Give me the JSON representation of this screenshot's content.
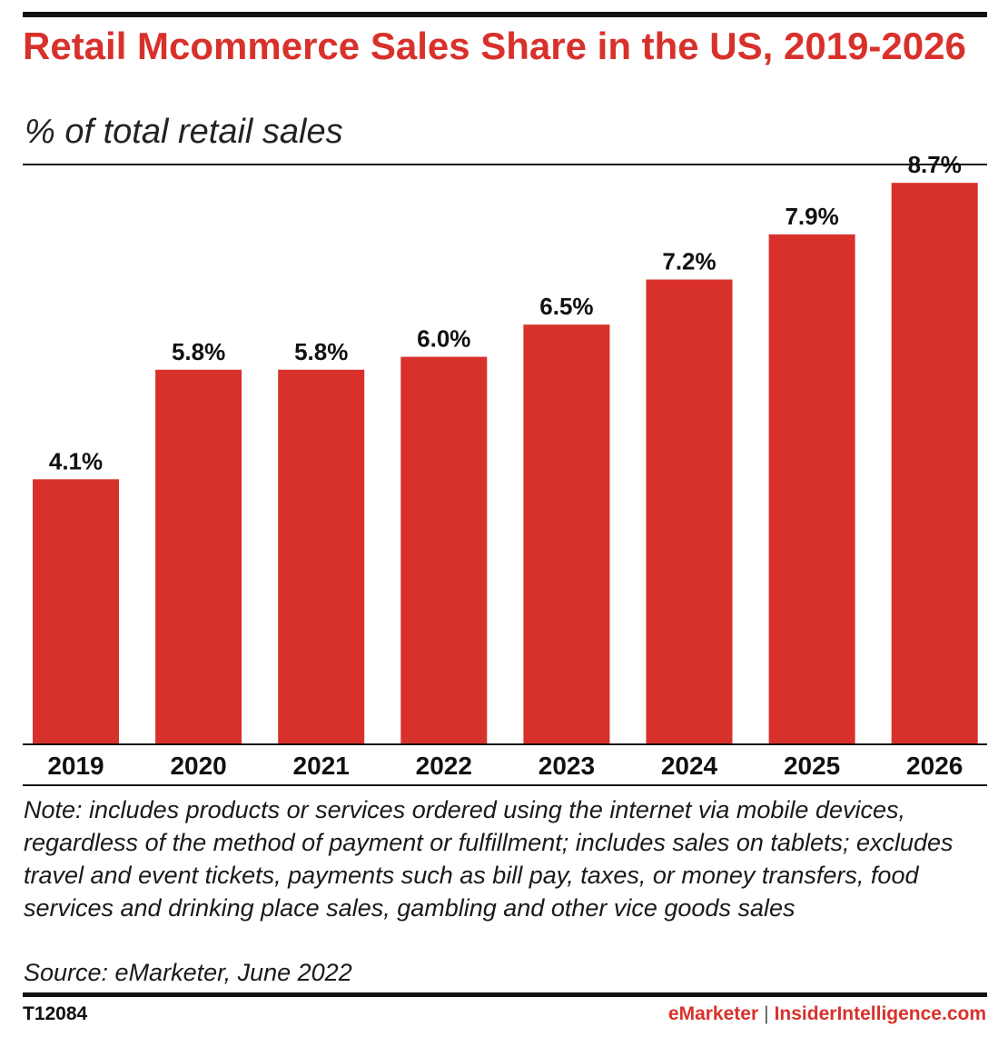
{
  "chart_data": {
    "type": "bar",
    "title": "Retail Mcommerce Sales Share in the US, 2019-2026",
    "subtitle": "% of total retail sales",
    "categories": [
      "2019",
      "2020",
      "2021",
      "2022",
      "2023",
      "2024",
      "2025",
      "2026"
    ],
    "values": [
      4.1,
      5.8,
      5.8,
      6.0,
      6.5,
      7.2,
      7.9,
      8.7
    ],
    "value_labels": [
      "4.1%",
      "5.8%",
      "5.8%",
      "6.0%",
      "6.5%",
      "7.2%",
      "7.9%",
      "8.7%"
    ],
    "xlabel": "",
    "ylabel": "",
    "ylim": [
      0,
      10
    ],
    "grid": false,
    "bar_color": "#d8312b"
  },
  "note": "Note: includes products or services ordered using the internet via mobile devices, regardless of the method of payment or fulfillment; includes sales on tablets; excludes travel and event tickets, payments such as bill pay, taxes, or money transfers, food services and drinking place sales, gambling and other vice goods sales",
  "source": "Source: eMarketer, June 2022",
  "footer": {
    "chart_id": "T12084",
    "brand_emarketer": "eMarketer",
    "separator": "|",
    "brand_insider": "InsiderIntelligence.com"
  },
  "colors": {
    "accent": "#d8312b",
    "text": "#111111"
  }
}
